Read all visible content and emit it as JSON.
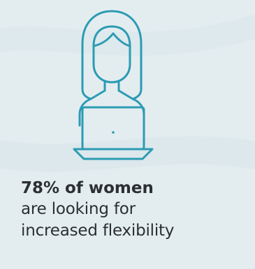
{
  "colors": {
    "background": "#e3edf0",
    "icon_stroke": "#2c9bb3",
    "text": "#2b2f33"
  },
  "illustration": {
    "icon": "woman-with-laptop-icon"
  },
  "stat": {
    "headline": "78% of women",
    "line_1": "are looking for",
    "line_2": "increased flexibility"
  }
}
